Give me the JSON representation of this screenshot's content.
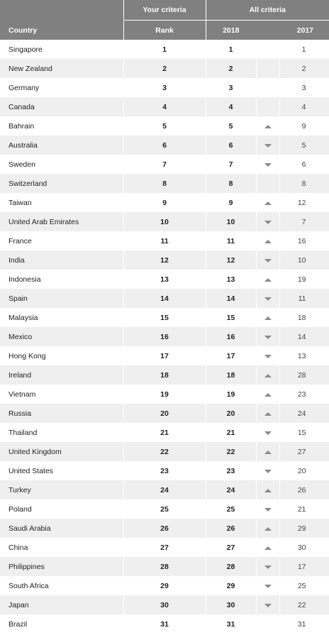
{
  "header": {
    "your_criteria": "Your criteria",
    "all_criteria": "All criteria",
    "country": "Country",
    "rank": "Rank",
    "year_2018": "2018",
    "year_2017": "2017"
  },
  "rows": [
    {
      "country": "Singapore",
      "rank": "1",
      "y2018": "1",
      "trend": "none",
      "y2017": "1"
    },
    {
      "country": "New Zealand",
      "rank": "2",
      "y2018": "2",
      "trend": "none",
      "y2017": "2"
    },
    {
      "country": "Germany",
      "rank": "3",
      "y2018": "3",
      "trend": "none",
      "y2017": "3"
    },
    {
      "country": "Canada",
      "rank": "4",
      "y2018": "4",
      "trend": "none",
      "y2017": "4"
    },
    {
      "country": "Bahrain",
      "rank": "5",
      "y2018": "5",
      "trend": "up",
      "y2017": "9"
    },
    {
      "country": "Australia",
      "rank": "6",
      "y2018": "6",
      "trend": "down",
      "y2017": "5"
    },
    {
      "country": "Sweden",
      "rank": "7",
      "y2018": "7",
      "trend": "down",
      "y2017": "6"
    },
    {
      "country": "Switzerland",
      "rank": "8",
      "y2018": "8",
      "trend": "none",
      "y2017": "8"
    },
    {
      "country": "Taiwan",
      "rank": "9",
      "y2018": "9",
      "trend": "up",
      "y2017": "12"
    },
    {
      "country": "United Arab Emirates",
      "rank": "10",
      "y2018": "10",
      "trend": "down",
      "y2017": "7"
    },
    {
      "country": "France",
      "rank": "11",
      "y2018": "11",
      "trend": "up",
      "y2017": "16"
    },
    {
      "country": "India",
      "rank": "12",
      "y2018": "12",
      "trend": "down",
      "y2017": "10"
    },
    {
      "country": "Indonesia",
      "rank": "13",
      "y2018": "13",
      "trend": "up",
      "y2017": "19"
    },
    {
      "country": "Spain",
      "rank": "14",
      "y2018": "14",
      "trend": "down",
      "y2017": "11"
    },
    {
      "country": "Malaysia",
      "rank": "15",
      "y2018": "15",
      "trend": "up",
      "y2017": "18"
    },
    {
      "country": "Mexico",
      "rank": "16",
      "y2018": "16",
      "trend": "down",
      "y2017": "14"
    },
    {
      "country": "Hong Kong",
      "rank": "17",
      "y2018": "17",
      "trend": "down",
      "y2017": "13"
    },
    {
      "country": "Ireland",
      "rank": "18",
      "y2018": "18",
      "trend": "up",
      "y2017": "28"
    },
    {
      "country": "Vietnam",
      "rank": "19",
      "y2018": "19",
      "trend": "up",
      "y2017": "23"
    },
    {
      "country": "Russia",
      "rank": "20",
      "y2018": "20",
      "trend": "up",
      "y2017": "24"
    },
    {
      "country": "Thailand",
      "rank": "21",
      "y2018": "21",
      "trend": "down",
      "y2017": "15"
    },
    {
      "country": "United Kingdom",
      "rank": "22",
      "y2018": "22",
      "trend": "up",
      "y2017": "27"
    },
    {
      "country": "United States",
      "rank": "23",
      "y2018": "23",
      "trend": "down",
      "y2017": "20"
    },
    {
      "country": "Turkey",
      "rank": "24",
      "y2018": "24",
      "trend": "up",
      "y2017": "26"
    },
    {
      "country": "Poland",
      "rank": "25",
      "y2018": "25",
      "trend": "down",
      "y2017": "21"
    },
    {
      "country": "Saudi Arabia",
      "rank": "26",
      "y2018": "26",
      "trend": "up",
      "y2017": "29"
    },
    {
      "country": "China",
      "rank": "27",
      "y2018": "27",
      "trend": "up",
      "y2017": "30"
    },
    {
      "country": "Philippines",
      "rank": "28",
      "y2018": "28",
      "trend": "down",
      "y2017": "17"
    },
    {
      "country": "South Africa",
      "rank": "29",
      "y2018": "29",
      "trend": "down",
      "y2017": "25"
    },
    {
      "country": "Japan",
      "rank": "30",
      "y2018": "30",
      "trend": "down",
      "y2017": "22"
    },
    {
      "country": "Brazil",
      "rank": "31",
      "y2018": "31",
      "trend": "none",
      "y2017": "31"
    }
  ],
  "colors": {
    "header_bg": "#808080",
    "row_alt_bg": "#efefef",
    "arrow": "#8a8a8a"
  }
}
